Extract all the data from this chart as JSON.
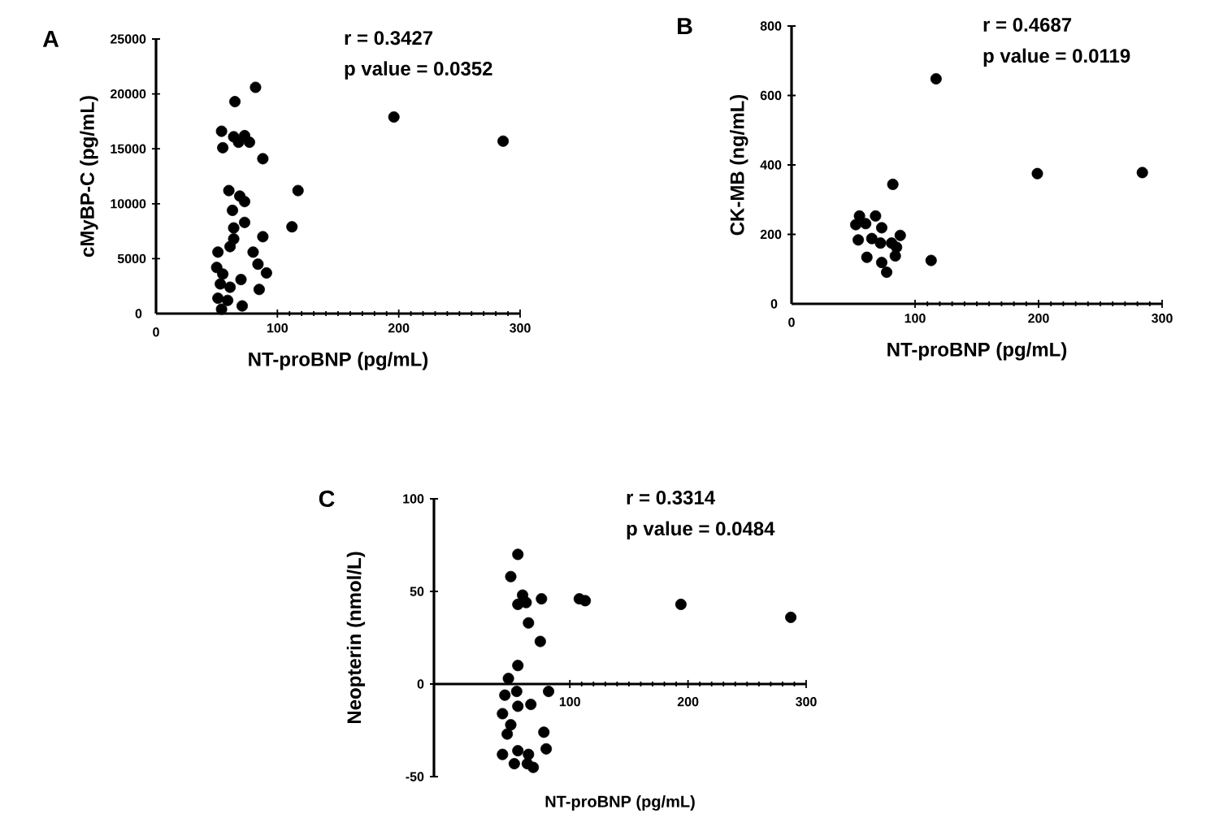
{
  "chart_data": [
    {
      "type": "scatter",
      "title": "A",
      "xlabel": "NT-proBNP (pg/mL)",
      "ylabel": "cMyBP-C (pg/mL)",
      "annotations": [
        "r = 0.3427",
        "p value = 0.0352"
      ],
      "color": "#000000",
      "x": [
        82,
        65,
        196,
        286,
        54,
        55,
        64,
        68,
        73,
        77,
        88,
        117,
        60,
        69,
        73,
        63,
        112,
        73,
        64,
        88,
        64,
        61,
        51,
        80,
        84,
        50,
        91,
        55,
        70,
        53,
        61,
        85,
        51,
        59,
        71,
        54
      ],
      "values": [
        20600,
        19300,
        17900,
        15700,
        16600,
        15100,
        16100,
        15600,
        16200,
        15600,
        14100,
        11200,
        11200,
        10700,
        10200,
        9400,
        7900,
        8300,
        7800,
        7000,
        6800,
        6100,
        5600,
        5600,
        4500,
        4200,
        3700,
        3600,
        3100,
        2700,
        2400,
        2200,
        1400,
        1200,
        700,
        400
      ],
      "xlim": [
        0,
        300
      ],
      "ylim": [
        0,
        25000
      ],
      "xticks": [
        0,
        100,
        200,
        300
      ],
      "yticks": [
        0,
        5000,
        10000,
        15000,
        20000,
        25000
      ]
    },
    {
      "type": "scatter",
      "title": "B",
      "xlabel": "NT-proBNP (pg/mL)",
      "ylabel": "CK-MB (ng/mL)",
      "annotations": [
        "r = 0.4687",
        "p value = 0.0119"
      ],
      "color": "#000000",
      "x": [
        117,
        199,
        284,
        82,
        55,
        68,
        52,
        60,
        73,
        54,
        65,
        72,
        88,
        85,
        61,
        84,
        73,
        77,
        113,
        81
      ],
      "values": [
        648,
        375,
        378,
        344,
        253,
        253,
        228,
        231,
        219,
        184,
        188,
        175,
        197,
        163,
        134,
        138,
        119,
        91,
        125,
        175
      ],
      "xlim": [
        0,
        300
      ],
      "ylim": [
        0,
        800
      ],
      "xticks": [
        0,
        100,
        200,
        300
      ],
      "yticks": [
        0,
        200,
        400,
        600,
        800
      ]
    },
    {
      "type": "scatter",
      "title": "C",
      "xlabel": "NT-proBNP (pg/mL)",
      "ylabel": "Neopterin (nmol/L)",
      "annotations": [
        "r = 0.3314",
        "p value = 0.0484"
      ],
      "color": "#000000",
      "x": [
        56,
        50,
        60,
        56,
        63,
        76,
        108,
        113,
        194,
        287,
        65,
        75,
        56,
        48,
        45,
        55,
        82,
        56,
        67,
        43,
        50,
        47,
        78,
        80,
        43,
        56,
        65,
        53,
        64,
        69
      ],
      "values": [
        70,
        58,
        48,
        43,
        44,
        46,
        46,
        45,
        43,
        36,
        33,
        23,
        10,
        3,
        -6,
        -4,
        -4,
        -12,
        -11,
        -16,
        -22,
        -27,
        -26,
        -35,
        -38,
        -36,
        -38,
        -43,
        -43,
        -45
      ],
      "xlim": [
        -15,
        300
      ],
      "ylim": [
        -50,
        100
      ],
      "xticks": [
        100,
        200,
        300
      ],
      "yticks": [
        -50,
        0,
        50,
        100
      ]
    }
  ]
}
